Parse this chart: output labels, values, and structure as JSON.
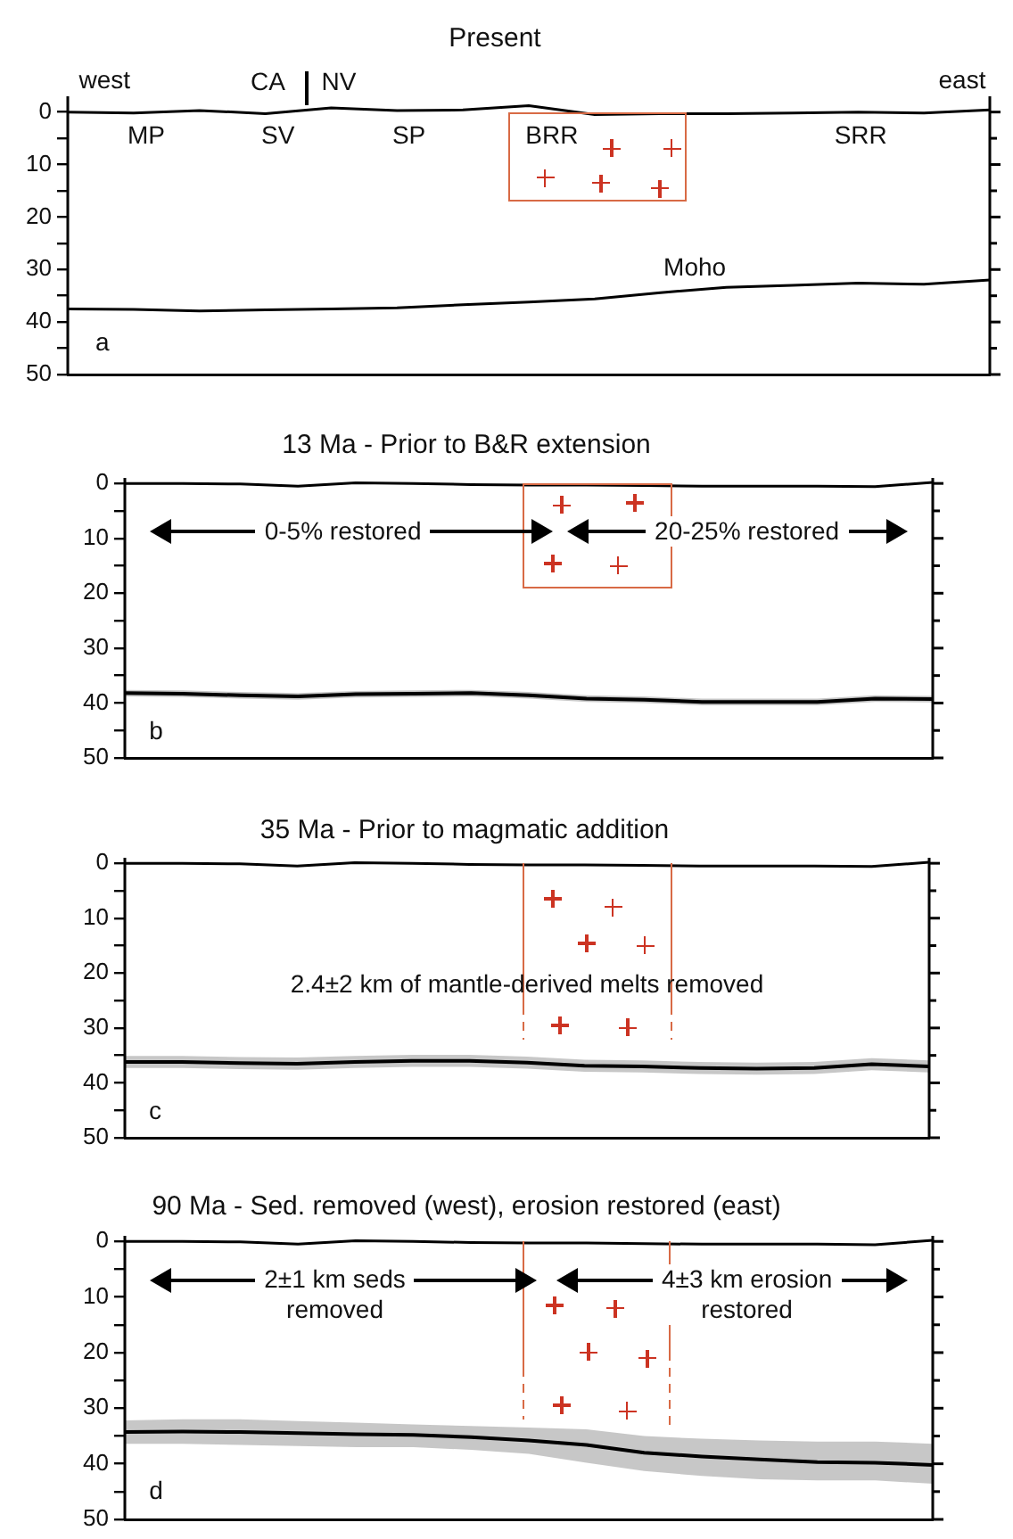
{
  "chart_data": [
    {
      "type": "line",
      "title": "Present",
      "categories": [
        null,
        null,
        null,
        null,
        null,
        null,
        null,
        null,
        null,
        null,
        null,
        null,
        null,
        null,
        null
      ],
      "ylim": [
        50,
        -3
      ],
      "yticks": [
        0,
        {
          "value": 5,
          "label": null
        },
        10,
        {
          "value": 15,
          "label": null
        },
        20,
        {
          "value": 25,
          "label": null
        },
        30,
        {
          "value": 35,
          "label": null
        },
        40,
        {
          "value": 45,
          "label": null
        },
        50
      ],
      "tick_labels": "y",
      "grid": false,
      "legend": false,
      "marker": "none",
      "series": [
        {
          "color": "#000000",
          "values": [
            0,
            0.2,
            -0.3,
            0.3,
            -0.8,
            -0.3,
            -0.4,
            -1.2,
            0.5,
            0.3,
            0.3,
            0.2,
            0,
            0.2,
            -0.4
          ]
        },
        {
          "name": "Moho",
          "color": "#000000",
          "values": [
            37.5,
            37.6,
            37.9,
            37.7,
            37.5,
            37.3,
            36.7,
            36.2,
            35.6,
            34.4,
            33.4,
            33.0,
            32.6,
            32.8,
            32.0
          ]
        }
      ],
      "annotations": [
        "west",
        "east",
        "CA",
        "NV",
        "MP",
        "SV",
        "SP",
        "BRR",
        "SRR",
        "a"
      ]
    },
    {
      "type": "line",
      "title": "13 Ma - Prior to B&R extension",
      "categories": [
        null,
        null,
        null,
        null,
        null,
        null,
        null,
        null,
        null,
        null,
        null,
        null,
        null,
        null,
        null
      ],
      "ylim": [
        50,
        -1
      ],
      "yticks": [
        0,
        {
          "value": 5,
          "label": null
        },
        10,
        {
          "value": 15,
          "label": null
        },
        20,
        {
          "value": 25,
          "label": null
        },
        30,
        {
          "value": 35,
          "label": null
        },
        40,
        {
          "value": 45,
          "label": null
        },
        50
      ],
      "tick_labels": "y",
      "grid": false,
      "legend": false,
      "marker": "none",
      "series": [
        {
          "color": "#000000",
          "values": [
            0,
            0,
            0.1,
            0.5,
            -0.1,
            0,
            0.2,
            0.3,
            0.3,
            0.4,
            0.5,
            0.5,
            0.5,
            0.6,
            -0.2
          ]
        },
        {
          "color": "#000000",
          "values": [
            38.2,
            38.3,
            38.6,
            38.8,
            38.4,
            38.3,
            38.2,
            38.6,
            39.2,
            39.4,
            39.8,
            39.8,
            39.8,
            39.2,
            39.3
          ],
          "lower": [
            37.6,
            37.7,
            38.0,
            38.2,
            37.8,
            37.7,
            37.6,
            38.0,
            38.6,
            38.8,
            39.2,
            39.2,
            39.2,
            38.6,
            38.7
          ],
          "upper": [
            38.8,
            38.9,
            39.2,
            39.4,
            39.0,
            38.9,
            38.8,
            39.2,
            39.8,
            40.0,
            40.4,
            40.4,
            40.4,
            39.8,
            39.9
          ]
        }
      ],
      "annotations": [
        "0-5% restored",
        "20-25% restored",
        "b"
      ]
    },
    {
      "type": "line",
      "title": "35 Ma - Prior to magmatic addition",
      "categories": [
        null,
        null,
        null,
        null,
        null,
        null,
        null,
        null,
        null,
        null,
        null,
        null,
        null,
        null,
        null
      ],
      "ylim": [
        50,
        -1
      ],
      "yticks": [
        0,
        {
          "value": 5,
          "label": null
        },
        10,
        {
          "value": 15,
          "label": null
        },
        20,
        {
          "value": 25,
          "label": null
        },
        30,
        {
          "value": 35,
          "label": null
        },
        40,
        {
          "value": 45,
          "label": null
        },
        50
      ],
      "tick_labels": "y",
      "grid": false,
      "legend": false,
      "marker": "none",
      "series": [
        {
          "color": "#000000",
          "values": [
            0,
            0,
            0.1,
            0.5,
            -0.1,
            0,
            0.2,
            0.3,
            0.3,
            0.4,
            0.5,
            0.5,
            0.5,
            0.6,
            -0.2
          ]
        },
        {
          "color": "#000000",
          "values": [
            36.2,
            36.2,
            36.4,
            36.5,
            36.2,
            36.0,
            36.0,
            36.3,
            36.9,
            37.0,
            37.3,
            37.4,
            37.3,
            36.6,
            37.0
          ],
          "lower": [
            35.1,
            35.1,
            35.3,
            35.4,
            35.1,
            34.9,
            34.9,
            35.2,
            35.8,
            35.9,
            36.2,
            36.3,
            36.2,
            35.5,
            35.9
          ],
          "upper": [
            37.3,
            37.3,
            37.5,
            37.6,
            37.3,
            37.1,
            37.1,
            37.4,
            38.0,
            38.1,
            38.4,
            38.5,
            38.4,
            37.7,
            38.1
          ]
        }
      ],
      "annotations": [
        "2.4±2 km of mantle-derived melts removed",
        "c"
      ]
    },
    {
      "type": "line",
      "title": "90 Ma - Sed. removed (west), erosion restored (east)",
      "categories": [
        null,
        null,
        null,
        null,
        null,
        null,
        null,
        null,
        null,
        null,
        null,
        null,
        null,
        null,
        null
      ],
      "ylim": [
        50,
        -1
      ],
      "yticks": [
        0,
        {
          "value": 5,
          "label": null
        },
        10,
        {
          "value": 15,
          "label": null
        },
        20,
        {
          "value": 25,
          "label": null
        },
        30,
        {
          "value": 35,
          "label": null
        },
        40,
        {
          "value": 45,
          "label": null
        },
        50
      ],
      "tick_labels": "y",
      "grid": false,
      "legend": false,
      "marker": "none",
      "series": [
        {
          "color": "#000000",
          "values": [
            0,
            0,
            0.1,
            0.5,
            -0.1,
            0,
            0.2,
            0.3,
            0.3,
            0.4,
            0.5,
            0.5,
            0.5,
            0.6,
            -0.2
          ]
        },
        {
          "color": "#000000",
          "values": [
            34.3,
            34.2,
            34.3,
            34.5,
            34.7,
            34.8,
            35.2,
            35.8,
            36.6,
            38.0,
            38.7,
            39.2,
            39.7,
            39.8,
            40.2
          ],
          "lower": [
            32.2,
            32.0,
            32.0,
            32.3,
            32.6,
            32.9,
            33.2,
            33.5,
            33.8,
            35.0,
            35.5,
            35.8,
            36.0,
            36.0,
            36.4
          ],
          "upper": [
            36.4,
            36.4,
            36.6,
            36.8,
            37.0,
            37.0,
            37.5,
            38.2,
            39.8,
            41.3,
            42.2,
            42.8,
            43.0,
            43.0,
            43.6
          ]
        }
      ],
      "annotations": [
        "2±1 km seds\nremoved",
        "4±3 km erosion\nrestored",
        "d"
      ]
    }
  ]
}
